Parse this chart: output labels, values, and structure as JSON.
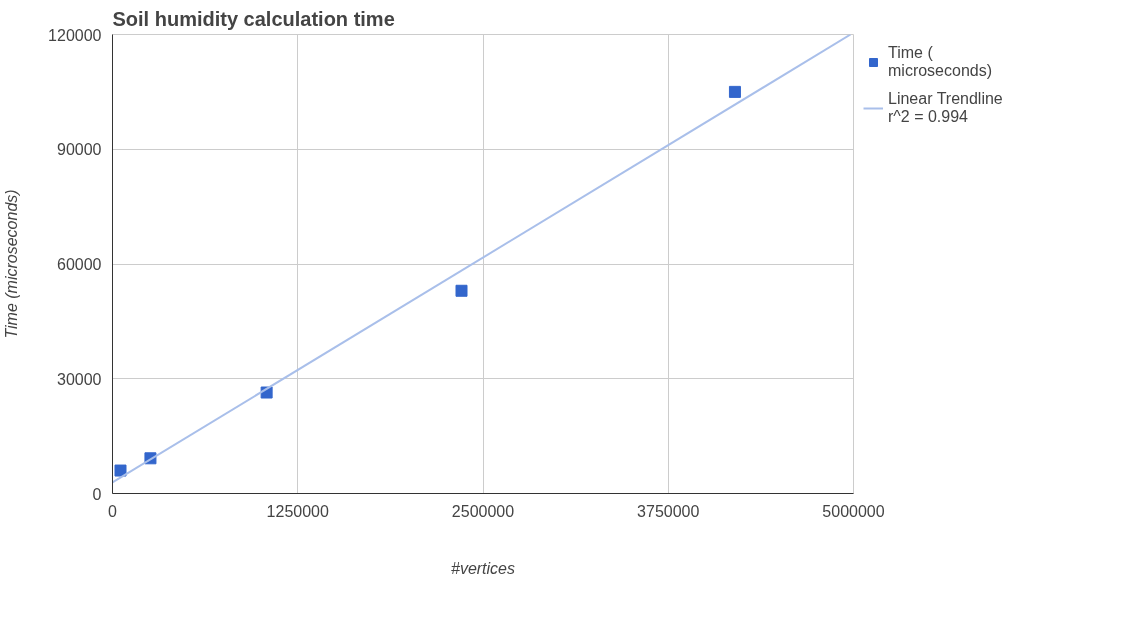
{
  "chart_data": {
    "type": "scatter",
    "title": "Soil humidity calculation time",
    "xlabel": "#vertices",
    "ylabel": "Time (microseconds)",
    "xlim": [
      0,
      5000000
    ],
    "ylim": [
      0,
      120000
    ],
    "xticks": [
      0,
      1250000,
      2500000,
      3750000,
      5000000
    ],
    "yticks": [
      0,
      30000,
      60000,
      90000,
      120000
    ],
    "grid": true,
    "legend": "top right",
    "series": [
      {
        "name": "Time ( microseconds)",
        "color": "#3366cc",
        "marker": "square",
        "x": [
          54000,
          256000,
          1040000,
          2355000,
          4200000
        ],
        "values": [
          6000,
          9200,
          26400,
          53000,
          105000
        ]
      },
      {
        "name": "Linear Trendline r^2 = 0.994",
        "color": "#a9bfea",
        "type": "line",
        "x": [
          0,
          4980000
        ],
        "values": [
          2900,
          120000
        ]
      }
    ]
  }
}
